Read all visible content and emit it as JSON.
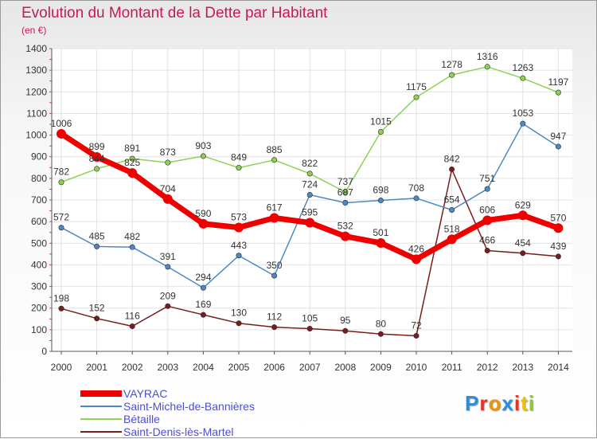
{
  "title": "Evolution du Montant de la Dette par Habitant",
  "subtitle": "(en €)",
  "brand": {
    "text": "Proxiti",
    "letters": [
      "P",
      "r",
      "o",
      "x",
      "i",
      "t",
      "i"
    ],
    "colors": [
      "#2a8fd6",
      "#e6332a",
      "#f29400",
      "#2a8fd6",
      "#e6332a",
      "#f2c200",
      "#8dc63f"
    ]
  },
  "chart_data": {
    "type": "line",
    "title": "Evolution du Montant de la Dette par Habitant",
    "ylabel": "(en €)",
    "xlabel": "",
    "ylim": [
      0,
      1400
    ],
    "y_ticks": [
      0,
      100,
      200,
      300,
      400,
      500,
      600,
      700,
      800,
      900,
      1000,
      1100,
      1200,
      1300,
      1400
    ],
    "grid": true,
    "legend_position": "bottom-left",
    "x": [
      "2000",
      "2001",
      "2002",
      "2003",
      "2004",
      "2005",
      "2006",
      "2007",
      "2008",
      "2009",
      "2010",
      "2011",
      "2012",
      "2013",
      "2014"
    ],
    "series": [
      {
        "name": "VAYRAC",
        "color": "#ee0000",
        "values": [
          1006,
          899,
          825,
          704,
          590,
          573,
          617,
          595,
          532,
          501,
          426,
          518,
          606,
          629,
          570
        ]
      },
      {
        "name": "Saint-Michel-de-Bannières",
        "color": "#4d88c4",
        "values": [
          572,
          485,
          482,
          391,
          294,
          443,
          350,
          724,
          687,
          698,
          708,
          654,
          751,
          1053,
          947
        ]
      },
      {
        "name": "Bétaille",
        "color": "#8ed154",
        "values": [
          782,
          844,
          891,
          873,
          903,
          849,
          885,
          822,
          737,
          1015,
          1175,
          1278,
          1316,
          1263,
          1197
        ]
      },
      {
        "name": "Saint-Denis-lès-Martel",
        "color": "#7a1c1c",
        "values": [
          198,
          152,
          116,
          209,
          169,
          130,
          112,
          105,
          95,
          80,
          72,
          842,
          466,
          454,
          439
        ]
      }
    ]
  }
}
